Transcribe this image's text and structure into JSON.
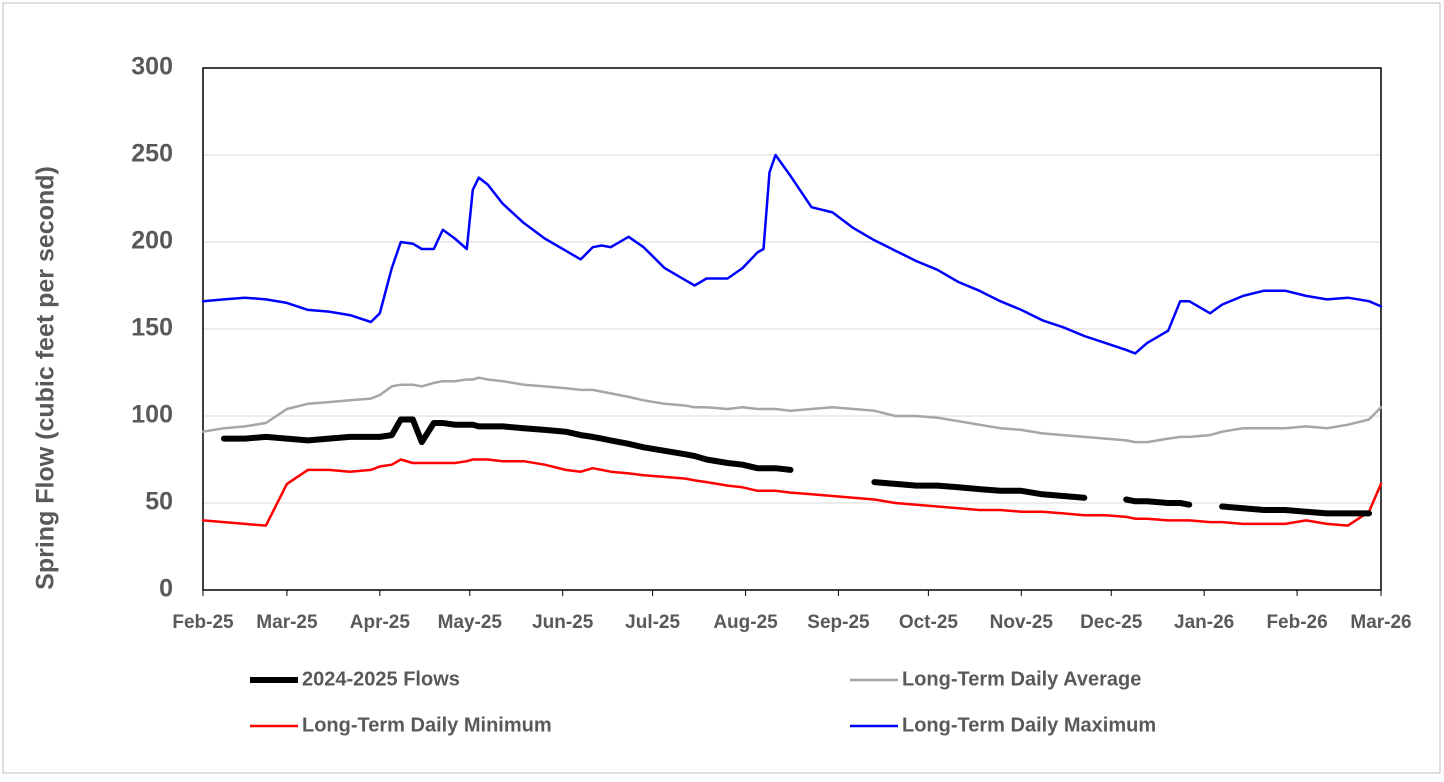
{
  "chart_data": {
    "type": "line",
    "y_label": "Spring Flow (cubic feet per second)",
    "x": [
      0,
      7,
      14,
      21,
      28,
      35,
      42,
      49,
      56,
      59,
      63,
      66,
      70,
      73,
      77,
      80,
      84,
      88,
      90,
      92,
      95,
      100,
      107,
      114,
      121,
      126,
      130,
      133,
      136,
      142,
      147,
      154,
      161,
      164,
      168,
      175,
      180,
      185,
      187,
      189,
      191,
      196,
      203,
      210,
      217,
      224,
      231,
      238,
      245,
      252,
      259,
      266,
      273,
      280,
      287,
      294,
      301,
      308,
      311,
      315,
      322,
      326,
      329,
      336,
      340,
      347,
      354,
      361,
      368,
      375,
      382,
      389,
      393
    ],
    "xlim": [
      0,
      393
    ],
    "xticks": [
      {
        "value": 0,
        "label": "Feb-25"
      },
      {
        "value": 28,
        "label": "Mar-25"
      },
      {
        "value": 59,
        "label": "Apr-25"
      },
      {
        "value": 89,
        "label": "May-25"
      },
      {
        "value": 120,
        "label": "Jun-25"
      },
      {
        "value": 150,
        "label": "Jul-25"
      },
      {
        "value": 181,
        "label": "Aug-25"
      },
      {
        "value": 212,
        "label": "Sep-25"
      },
      {
        "value": 242,
        "label": "Oct-25"
      },
      {
        "value": 273,
        "label": "Nov-25"
      },
      {
        "value": 303,
        "label": "Dec-25"
      },
      {
        "value": 334,
        "label": "Jan-26"
      },
      {
        "value": 365,
        "label": "Feb-26"
      },
      {
        "value": 393,
        "label": "Mar-26"
      }
    ],
    "ylim": [
      0,
      300
    ],
    "yticks": [
      0,
      50,
      100,
      150,
      200,
      250,
      300
    ],
    "grid": true,
    "series": [
      {
        "name": "2024-2025 Flows",
        "color": "#000000",
        "width": 6,
        "values": [
          null,
          87,
          87,
          88,
          87,
          86,
          87,
          88,
          88,
          88,
          89,
          98,
          98,
          85,
          96,
          96,
          95,
          95,
          95,
          94,
          94,
          94,
          93,
          92,
          91,
          89,
          88,
          87,
          86,
          84,
          82,
          80,
          78,
          77,
          75,
          73,
          72,
          70,
          70,
          70,
          70,
          69,
          null,
          null,
          null,
          62,
          61,
          60,
          60,
          59,
          58,
          57,
          57,
          55,
          54,
          53,
          null,
          52,
          51,
          51,
          50,
          50,
          49,
          null,
          48,
          47,
          46,
          46,
          45,
          44,
          44,
          44,
          null
        ]
      },
      {
        "name": "Long-Term Daily Average",
        "color": "#a6a6a6",
        "width": 2.5,
        "values": [
          91,
          93,
          94,
          96,
          104,
          107,
          108,
          109,
          110,
          112,
          117,
          118,
          118,
          117,
          119,
          120,
          120,
          121,
          121,
          122,
          121,
          120,
          118,
          117,
          116,
          115,
          115,
          114,
          113,
          111,
          109,
          107,
          106,
          105,
          105,
          104,
          105,
          104,
          104,
          104,
          104,
          103,
          104,
          105,
          104,
          103,
          100,
          100,
          99,
          97,
          95,
          93,
          92,
          90,
          89,
          88,
          87,
          86,
          85,
          85,
          87,
          88,
          88,
          89,
          91,
          93,
          93,
          93,
          94,
          93,
          95,
          98,
          105
        ]
      },
      {
        "name": "Long-Term Daily Minimum",
        "color": "#ff0000",
        "width": 2.5,
        "values": [
          40,
          39,
          38,
          37,
          61,
          69,
          69,
          68,
          69,
          71,
          72,
          75,
          73,
          73,
          73,
          73,
          73,
          74,
          75,
          75,
          75,
          74,
          74,
          72,
          69,
          68,
          70,
          69,
          68,
          67,
          66,
          65,
          64,
          63,
          62,
          60,
          59,
          57,
          57,
          57,
          57,
          56,
          55,
          54,
          53,
          52,
          50,
          49,
          48,
          47,
          46,
          46,
          45,
          45,
          44,
          43,
          43,
          42,
          41,
          41,
          40,
          40,
          40,
          39,
          39,
          38,
          38,
          38,
          40,
          38,
          37,
          45,
          61
        ]
      },
      {
        "name": "Long-Term Daily Maximum",
        "color": "#0000ff",
        "width": 2.5,
        "values": [
          166,
          167,
          168,
          167,
          165,
          161,
          160,
          158,
          154,
          159,
          185,
          200,
          199,
          196,
          196,
          207,
          202,
          196,
          230,
          237,
          233,
          222,
          211,
          202,
          195,
          190,
          197,
          198,
          197,
          203,
          197,
          185,
          178,
          175,
          179,
          179,
          185,
          194,
          196,
          240,
          250,
          238,
          220,
          217,
          208,
          201,
          195,
          189,
          184,
          177,
          172,
          166,
          161,
          155,
          151,
          146,
          142,
          138,
          136,
          142,
          149,
          166,
          166,
          159,
          164,
          169,
          172,
          172,
          169,
          167,
          168,
          166,
          163
        ]
      }
    ]
  }
}
